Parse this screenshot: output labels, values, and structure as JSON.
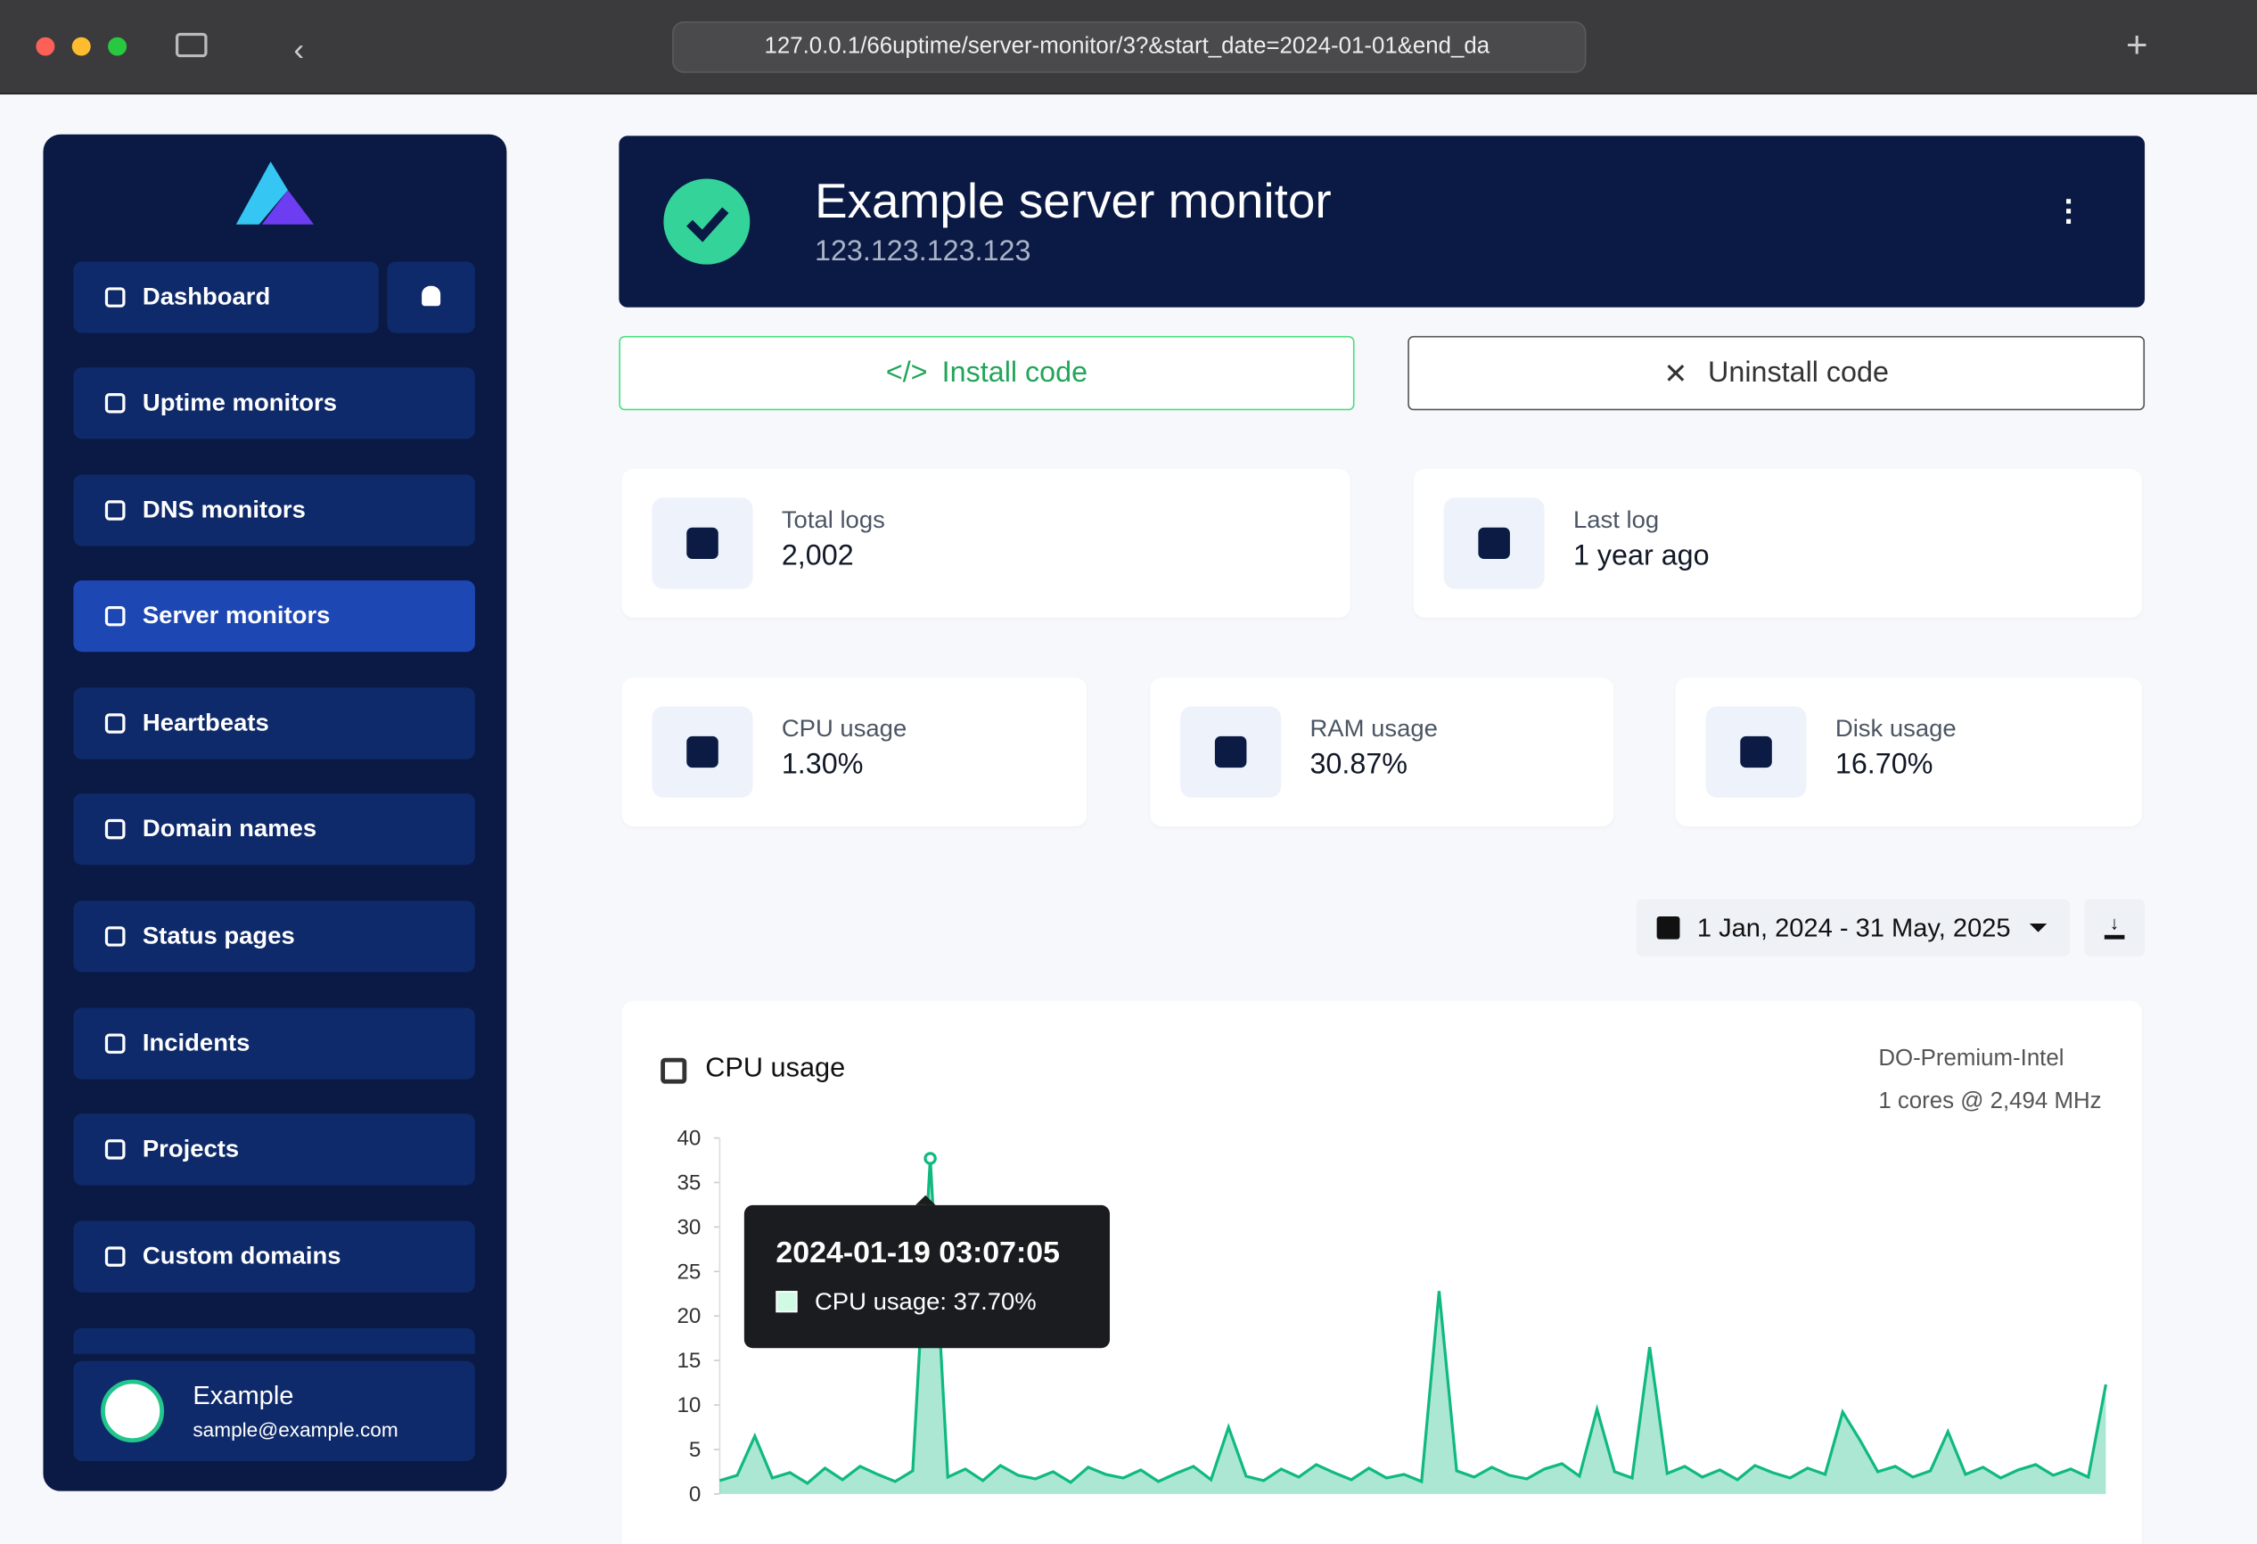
{
  "browser": {
    "url": "127.0.0.1/66uptime/server-monitor/3?&start_date=2024-01-01&end_da"
  },
  "sidebar": {
    "nav": [
      "Dashboard",
      "Uptime monitors",
      "DNS monitors",
      "Server monitors",
      "Heartbeats",
      "Domain names",
      "Status pages",
      "Incidents",
      "Projects",
      "Custom domains"
    ],
    "user": {
      "name": "Example",
      "email": "sample@example.com"
    }
  },
  "header": {
    "title": "Example server monitor",
    "ip": "123.123.123.123"
  },
  "buttons": [
    "Install code",
    "Uninstall code"
  ],
  "stats": [
    {
      "label": "Total logs",
      "value": "2,002"
    },
    {
      "label": "Last log",
      "value": "1 year ago"
    },
    {
      "label": "CPU usage",
      "value": "1.30%"
    },
    {
      "label": "RAM usage",
      "value": "30.87%"
    },
    {
      "label": "Disk usage",
      "value": "16.70%"
    }
  ],
  "date_range": "1 Jan, 2024 - 31 May, 2025",
  "chart_card": {
    "server": "DO-Premium-Intel",
    "specs": "1 cores @ 2,494 MHz",
    "tooltip": {
      "title": "2024-01-19 03:07:05",
      "label": "CPU usage: 37.70%"
    }
  },
  "chart_data": {
    "type": "area",
    "title": "CPU usage",
    "color": "#10b981",
    "values": [
      1.5,
      2.1,
      6.5,
      1.8,
      2.4,
      1.2,
      2.9,
      1.6,
      3.1,
      2.2,
      1.4,
      2.6,
      37.7,
      1.9,
      2.8,
      1.5,
      3.2,
      2.1,
      1.7,
      2.5,
      1.3,
      3.0,
      2.2,
      1.8,
      2.7,
      1.4,
      2.3,
      3.1,
      1.6,
      7.5,
      2.0,
      1.5,
      2.8,
      1.9,
      3.3,
      2.4,
      1.6,
      2.9,
      1.8,
      2.2,
      1.4,
      22.8,
      2.6,
      1.9,
      3.0,
      2.1,
      1.7,
      2.8,
      3.4,
      2.0,
      9.5,
      2.5,
      1.8,
      16.5,
      2.3,
      3.1,
      1.9,
      2.7,
      1.6,
      3.2,
      2.4,
      1.8,
      2.9,
      2.2,
      9.2,
      6.0,
      2.5,
      3.1,
      1.9,
      2.6,
      7.0,
      2.2,
      3.0,
      1.8,
      2.7,
      3.3,
      2.1,
      2.8,
      1.9,
      12.3
    ],
    "ylim": [
      0,
      40
    ],
    "yticks": [
      0,
      5,
      10,
      15,
      20,
      25,
      30,
      35,
      40
    ]
  }
}
